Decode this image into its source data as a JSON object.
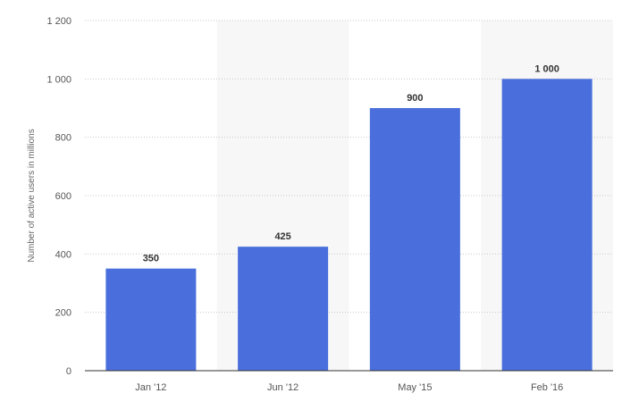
{
  "chart_data": {
    "type": "bar",
    "title": "",
    "xlabel": "",
    "ylabel": "Number of active users in millions",
    "categories": [
      "Jan '12",
      "Jun '12",
      "May '15",
      "Feb '16"
    ],
    "values": [
      350,
      425,
      900,
      1000
    ],
    "value_labels": [
      "350",
      "425",
      "900",
      "1 000"
    ],
    "ylim": [
      0,
      1200
    ],
    "yticks": [
      0,
      200,
      400,
      600,
      800,
      1000,
      1200
    ],
    "ytick_labels": [
      "0",
      "200",
      "400",
      "600",
      "800",
      "1 000",
      "1 200"
    ],
    "grid": true,
    "bar_color": "#4a6fdc",
    "band_color": "#f7f7f7",
    "grid_color": "#c8c8c8"
  }
}
